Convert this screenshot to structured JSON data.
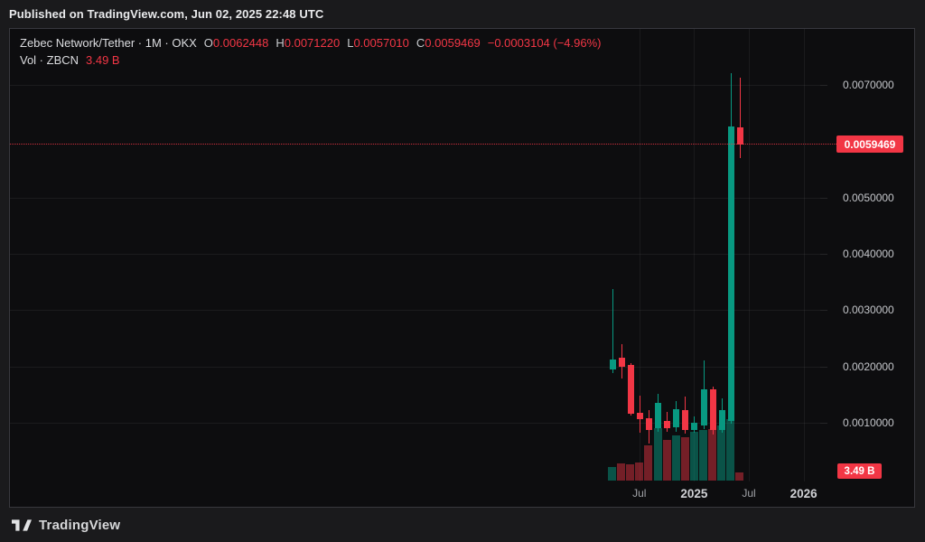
{
  "page": {
    "published_line": "Published on TradingView.com, Jun 02, 2025 22:48 UTC",
    "footer_brand": "TradingView"
  },
  "legend": {
    "title": "Zebec Network/Tether · 1M · OKX",
    "ohlc": [
      {
        "letter": "O",
        "value": "0.0062448"
      },
      {
        "letter": "H",
        "value": "0.0071220"
      },
      {
        "letter": "L",
        "value": "0.0057010"
      },
      {
        "letter": "C",
        "value": "0.0059469"
      }
    ],
    "change": "−0.0003104 (−4.96%)",
    "volume_label": "Vol · ZBCN",
    "volume_value": "3.49 B"
  },
  "price_scale": {
    "ticks": [
      {
        "text": "0.0070000",
        "price": 0.007
      },
      {
        "text": "0.0050000",
        "price": 0.005
      },
      {
        "text": "0.0040000",
        "price": 0.004
      },
      {
        "text": "0.0030000",
        "price": 0.003
      },
      {
        "text": "0.0020000",
        "price": 0.002
      },
      {
        "text": "0.0010000",
        "price": 0.001
      }
    ],
    "last_price_label": "0.0059469",
    "last_volume_label": "3.49 B"
  },
  "time_scale": {
    "labels": [
      {
        "text": "Jul",
        "month_index": 3,
        "style": "month"
      },
      {
        "text": "2025",
        "month_index": 9,
        "style": "year"
      },
      {
        "text": "Jul",
        "month_index": 15,
        "style": "month"
      },
      {
        "text": "2026",
        "month_index": 21,
        "style": "year"
      }
    ]
  },
  "colors": {
    "up": "#089981",
    "down": "#f23645",
    "vol_up": "rgba(8,153,129,0.5)",
    "vol_down": "rgba(242,54,69,0.45)",
    "accent_badge": "#f23645"
  },
  "chart_data": {
    "type": "candlestick_with_volume",
    "title": "Zebec Network/Tether",
    "interval": "1M",
    "exchange": "OKX",
    "last_price": 0.0059469,
    "last_change": -0.0003104,
    "last_change_pct": -4.96,
    "last_volume_b": 3.49,
    "price_axis_ticks": [
      0.001,
      0.002,
      0.003,
      0.004,
      0.005,
      0.006,
      0.007
    ],
    "visible_price_range": [
      0.0004,
      0.0076
    ],
    "x_axis_labels": [
      "Jul",
      "2025",
      "Jul",
      "2026"
    ],
    "grid": true,
    "candles": [
      {
        "t": "2024-04",
        "o": 0.00194,
        "h": 0.00337,
        "l": 0.00188,
        "c": 0.00212,
        "vol_b": 5.8
      },
      {
        "t": "2024-05",
        "o": 0.00215,
        "h": 0.00239,
        "l": 0.00178,
        "c": 0.00199,
        "vol_b": 7.4
      },
      {
        "t": "2024-06",
        "o": 0.00202,
        "h": 0.00206,
        "l": 0.00113,
        "c": 0.00116,
        "vol_b": 7.0
      },
      {
        "t": "2024-07",
        "o": 0.00117,
        "h": 0.00148,
        "l": 0.00082,
        "c": 0.00106,
        "vol_b": 7.8
      },
      {
        "t": "2024-08",
        "o": 0.00108,
        "h": 0.00122,
        "l": 0.00063,
        "c": 0.00087,
        "vol_b": 15.1
      },
      {
        "t": "2024-09",
        "o": 0.0009,
        "h": 0.00151,
        "l": 0.00084,
        "c": 0.00135,
        "vol_b": 22.5
      },
      {
        "t": "2024-10",
        "o": 0.00103,
        "h": 0.00119,
        "l": 0.00084,
        "c": 0.0009,
        "vol_b": 17.4
      },
      {
        "t": "2024-11",
        "o": 0.00092,
        "h": 0.00138,
        "l": 0.00084,
        "c": 0.00124,
        "vol_b": 19.4
      },
      {
        "t": "2024-12",
        "o": 0.00122,
        "h": 0.00146,
        "l": 0.0008,
        "c": 0.00087,
        "vol_b": 18.6
      },
      {
        "t": "2025-01",
        "o": 0.00087,
        "h": 0.00111,
        "l": 0.00082,
        "c": 0.001,
        "vol_b": 20.9
      },
      {
        "t": "2025-02",
        "o": 0.00095,
        "h": 0.0021,
        "l": 0.00088,
        "c": 0.00159,
        "vol_b": 21.7
      },
      {
        "t": "2025-03",
        "o": 0.00159,
        "h": 0.00164,
        "l": 0.00079,
        "c": 0.00087,
        "vol_b": 22.1
      },
      {
        "t": "2025-04",
        "o": 0.00087,
        "h": 0.00143,
        "l": 0.00082,
        "c": 0.00122,
        "vol_b": 23.6
      },
      {
        "t": "2025-05",
        "o": 0.00103,
        "h": 0.00721,
        "l": 0.00098,
        "c": 0.00626,
        "vol_b": 26.4
      },
      {
        "t": "2025-06",
        "o": 0.0062448,
        "h": 0.007122,
        "l": 0.005701,
        "c": 0.0059469,
        "vol_b": 3.49
      }
    ]
  }
}
